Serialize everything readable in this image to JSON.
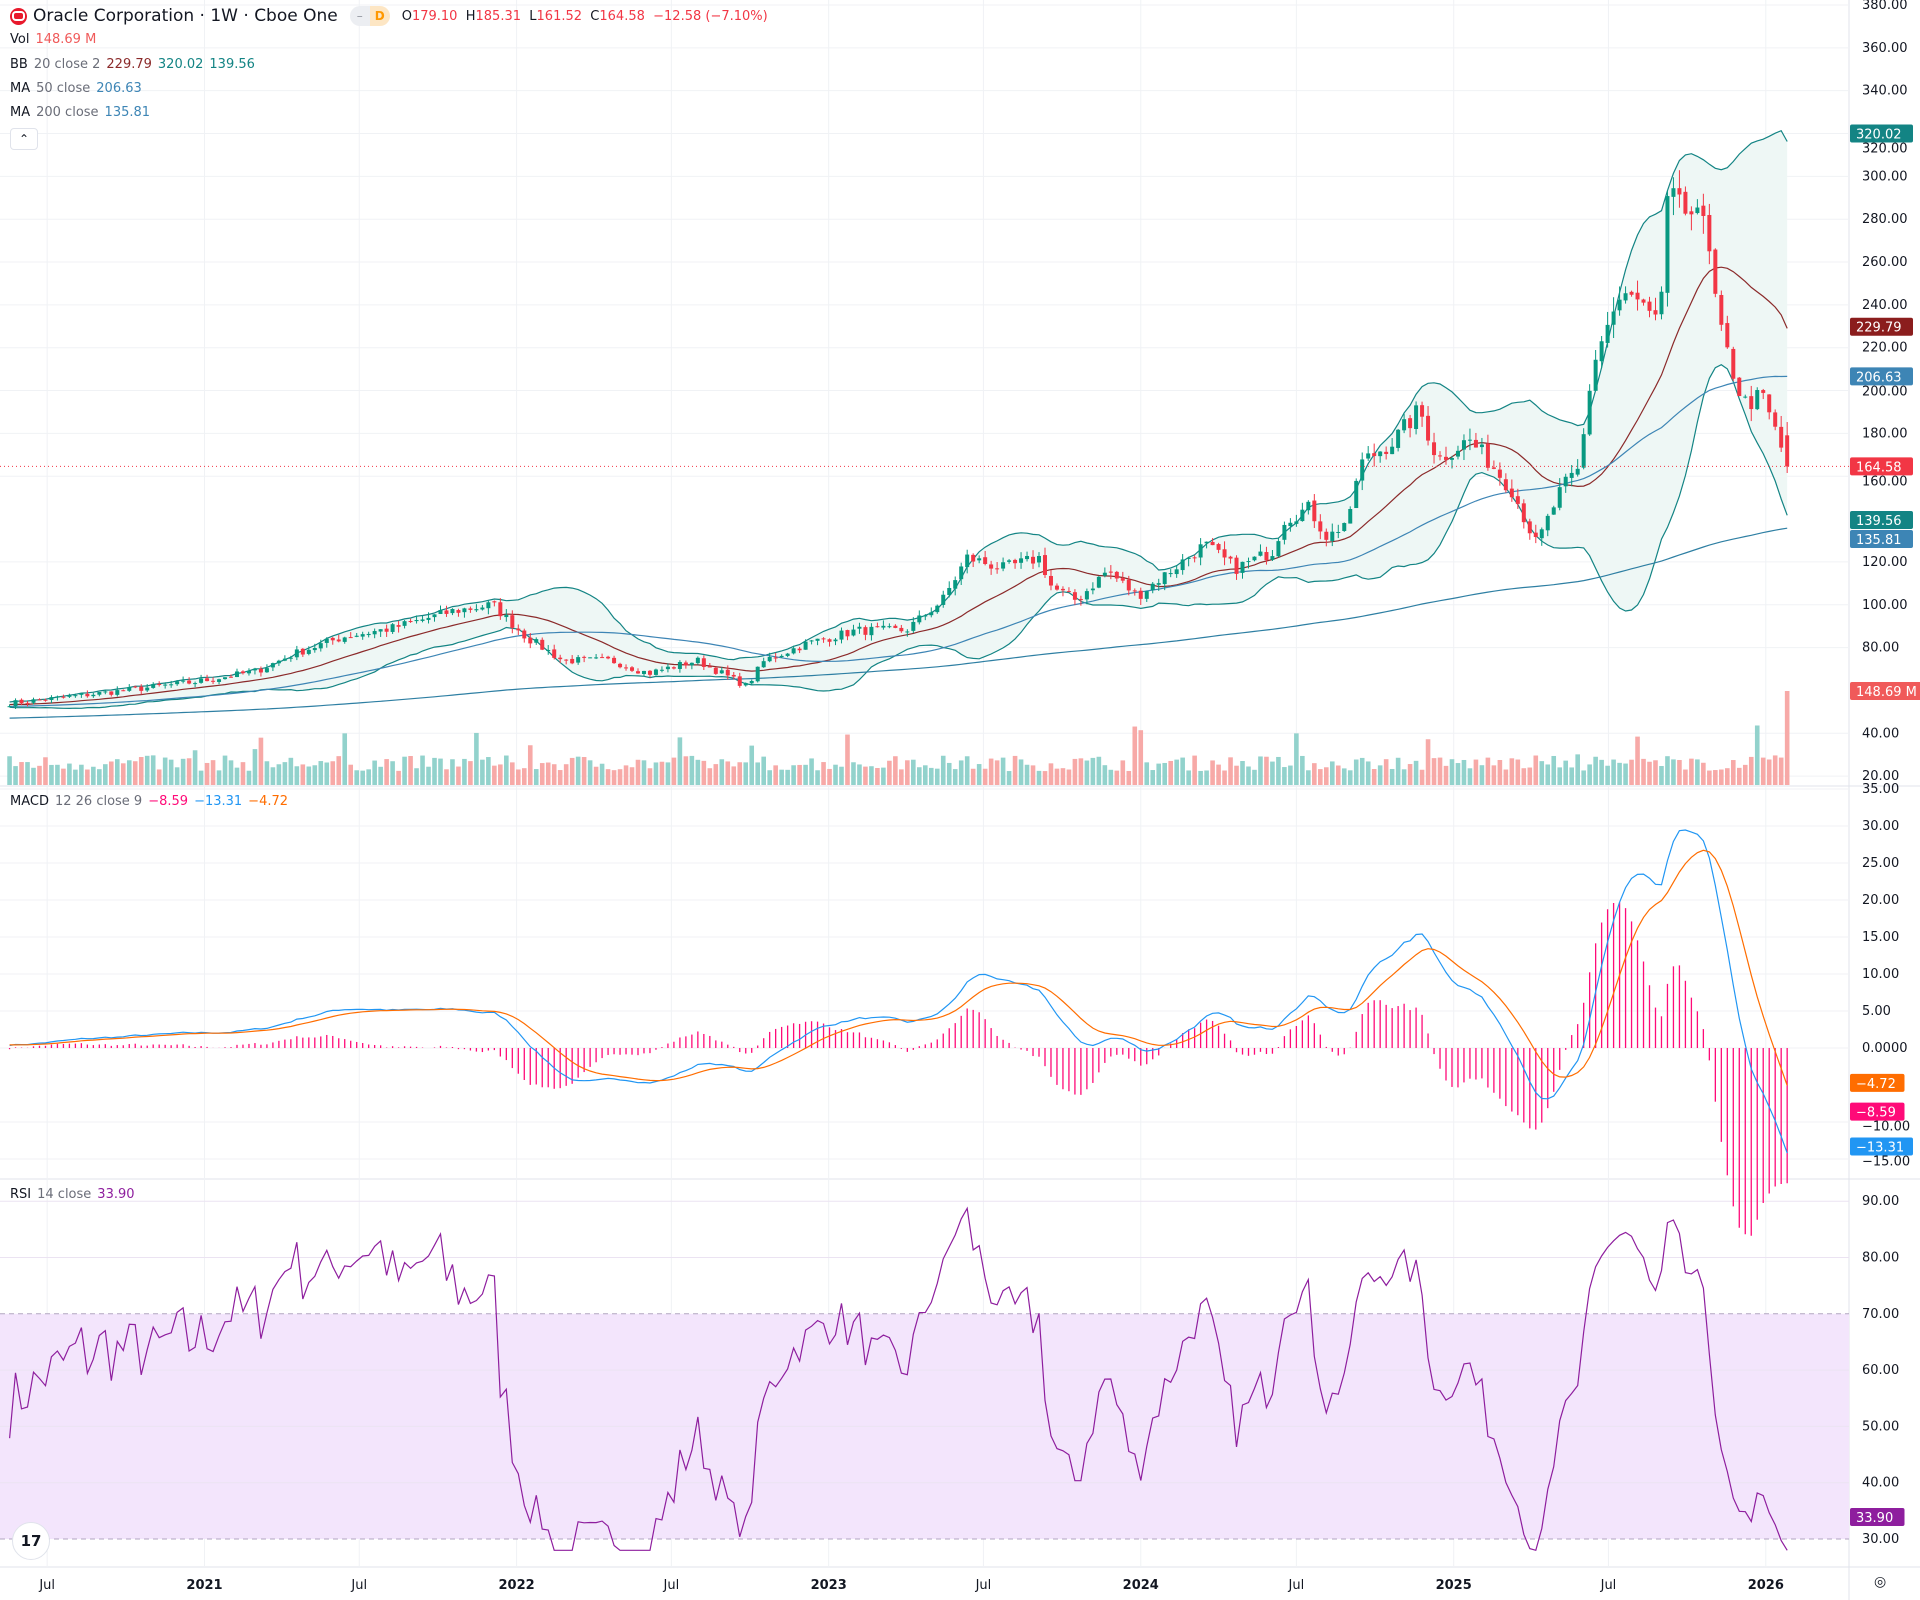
{
  "header": {
    "symbol_title": "Oracle Corporation · 1W · Cboe One",
    "badge_left": "–",
    "badge_right": "D",
    "ohlc": {
      "o_label": "O",
      "o": "179.10",
      "h_label": "H",
      "h": "185.31",
      "l_label": "L",
      "l": "161.52",
      "c_label": "C",
      "c": "164.58",
      "change": "−12.58 (−7.10%)"
    }
  },
  "legends": {
    "vol": {
      "name": "Vol",
      "value": "148.69 M"
    },
    "bb": {
      "name": "BB",
      "params": "20 close 2",
      "basis": "229.79",
      "upper": "320.02",
      "lower": "139.56"
    },
    "ma50": {
      "name": "MA",
      "params": "50 close",
      "value": "206.63"
    },
    "ma200": {
      "name": "MA",
      "params": "200 close",
      "value": "135.81"
    },
    "macd": {
      "name": "MACD",
      "params": "12 26 close 9",
      "hist": "−8.59",
      "macd": "−13.31",
      "signal": "−4.72"
    },
    "rsi": {
      "name": "RSI",
      "params": "14 close",
      "value": "33.90"
    },
    "collapse_icon": "chevron-up"
  },
  "axes": {
    "price_ticks": [
      "380.00",
      "360.00",
      "340.00",
      "320.00",
      "300.00",
      "280.00",
      "260.00",
      "240.00",
      "220.00",
      "200.00",
      "180.00",
      "160.00",
      "120.00",
      "100.00",
      "80.00",
      "40.00",
      "20.00"
    ],
    "macd_ticks": [
      "35.00",
      "30.00",
      "25.00",
      "20.00",
      "15.00",
      "10.00",
      "5.00",
      "0.0000",
      "−10.00",
      "−15.00"
    ],
    "rsi_ticks": [
      "90.00",
      "80.00",
      "70.00",
      "60.00",
      "50.00",
      "40.00",
      "30.00"
    ],
    "time_ticks": [
      {
        "label": "Jul",
        "date": "2020-07-01",
        "bold": false
      },
      {
        "label": "2021",
        "date": "2021-01-01",
        "bold": true
      },
      {
        "label": "Jul",
        "date": "2021-07-01",
        "bold": false
      },
      {
        "label": "2022",
        "date": "2022-01-01",
        "bold": true
      },
      {
        "label": "Jul",
        "date": "2022-07-01",
        "bold": false
      },
      {
        "label": "2023",
        "date": "2023-01-01",
        "bold": true
      },
      {
        "label": "Jul",
        "date": "2023-07-01",
        "bold": false
      },
      {
        "label": "2024",
        "date": "2024-01-01",
        "bold": true
      },
      {
        "label": "Jul",
        "date": "2024-07-01",
        "bold": false
      },
      {
        "label": "2025",
        "date": "2025-01-01",
        "bold": true
      },
      {
        "label": "Jul",
        "date": "2025-07-01",
        "bold": false
      },
      {
        "label": "2026",
        "date": "2026-01-01",
        "bold": true
      }
    ],
    "price_labels": [
      {
        "text": "320.02",
        "value": 320.02,
        "color": "#138484"
      },
      {
        "text": "229.79",
        "value": 229.79,
        "color": "#8b1d1d"
      },
      {
        "text": "206.63",
        "value": 206.63,
        "color": "#3d85b5"
      },
      {
        "text": "164.58",
        "value": 164.58,
        "color": "#f23645"
      },
      {
        "text": "139.56",
        "value": 139.56,
        "color": "#138484"
      },
      {
        "text": "135.81",
        "value": 135.81,
        "color": "#3d85b5"
      }
    ],
    "volume_label": {
      "text": "148.69 M",
      "value": 148.69,
      "color": "#f05a5a"
    },
    "macd_labels": [
      {
        "text": "−4.72",
        "value": -4.72,
        "color": "#ff6d00"
      },
      {
        "text": "−8.59",
        "value": -8.59,
        "color": "#ff0a78"
      },
      {
        "text": "−13.31",
        "value": -13.31,
        "color": "#2196f3"
      }
    ],
    "rsi_label": {
      "text": "33.90",
      "value": 33.9,
      "color": "#8e1e9e"
    }
  },
  "colors": {
    "up": "#089981",
    "down": "#f23645",
    "vol_up": "#92d2cc",
    "vol_down": "#f7a9a7",
    "bb_basis": "#8b2a2a",
    "bb_band": "#138484",
    "bb_fill": "#eef7f5",
    "ma50": "#3d85b5",
    "ma200": "#2e7fa3",
    "macd": "#2196f3",
    "signal": "#ff6d00",
    "hist": "#ff0a78",
    "rsi": "#8e1e9e",
    "rsi_band": "#f3e5fc"
  },
  "chart_data": {
    "type": "candlestick",
    "interval": "1W",
    "price_range": [
      20,
      380
    ],
    "macd_range": [
      -15,
      35
    ],
    "rsi_range": [
      30,
      90
    ],
    "rsi_levels": [
      70,
      30
    ],
    "last_candle": {
      "open": 179.1,
      "high": 185.31,
      "low": 161.52,
      "close": 164.58,
      "volume_m": 148.69
    },
    "close_keypoints": [
      [
        "2020-05-18",
        54
      ],
      [
        "2020-09-08",
        59
      ],
      [
        "2020-12-22",
        64
      ],
      [
        "2021-03-03",
        69
      ],
      [
        "2021-04-15",
        77
      ],
      [
        "2021-06-12",
        85
      ],
      [
        "2021-08-08",
        89
      ],
      [
        "2021-10-18",
        97
      ],
      [
        "2021-12-04",
        100
      ],
      [
        "2022-01-12",
        85
      ],
      [
        "2022-02-24",
        74
      ],
      [
        "2022-04-22",
        74
      ],
      [
        "2022-06-04",
        68
      ],
      [
        "2022-07-31",
        74
      ],
      [
        "2022-09-27",
        62
      ],
      [
        "2022-10-18",
        74
      ],
      [
        "2022-12-07",
        82
      ],
      [
        "2023-02-03",
        88
      ],
      [
        "2023-04-01",
        88
      ],
      [
        "2023-05-14",
        102
      ],
      [
        "2023-06-12",
        122
      ],
      [
        "2023-07-24",
        117
      ],
      [
        "2023-09-05",
        122
      ],
      [
        "2023-09-19",
        108
      ],
      [
        "2023-10-18",
        102
      ],
      [
        "2023-11-23",
        116
      ],
      [
        "2023-12-28",
        104
      ],
      [
        "2024-01-26",
        113
      ],
      [
        "2024-03-16",
        128
      ],
      [
        "2024-04-21",
        117
      ],
      [
        "2024-06-03",
        125
      ],
      [
        "2024-06-17",
        140
      ],
      [
        "2024-07-16",
        145
      ],
      [
        "2024-08-07",
        131
      ],
      [
        "2024-09-04",
        142
      ],
      [
        "2024-09-11",
        165
      ],
      [
        "2024-10-24",
        177
      ],
      [
        "2024-11-22",
        191
      ],
      [
        "2024-12-13",
        168
      ],
      [
        "2025-01-19",
        177
      ],
      [
        "2025-02-09",
        168
      ],
      [
        "2025-03-10",
        154
      ],
      [
        "2025-04-08",
        128
      ],
      [
        "2025-05-07",
        154
      ],
      [
        "2025-05-28",
        163
      ],
      [
        "2025-06-12",
        211
      ],
      [
        "2025-07-03",
        234
      ],
      [
        "2025-07-24",
        245
      ],
      [
        "2025-08-29",
        228
      ],
      [
        "2025-09-08",
        291
      ],
      [
        "2025-09-26",
        283
      ],
      [
        "2025-10-11",
        291
      ],
      [
        "2025-10-25",
        268
      ],
      [
        "2025-11-08",
        228
      ],
      [
        "2025-11-22",
        211
      ],
      [
        "2025-12-06",
        194
      ],
      [
        "2025-12-28",
        197
      ],
      [
        "2026-01-14",
        179.1
      ],
      [
        "2026-01-26",
        164.58
      ]
    ]
  }
}
